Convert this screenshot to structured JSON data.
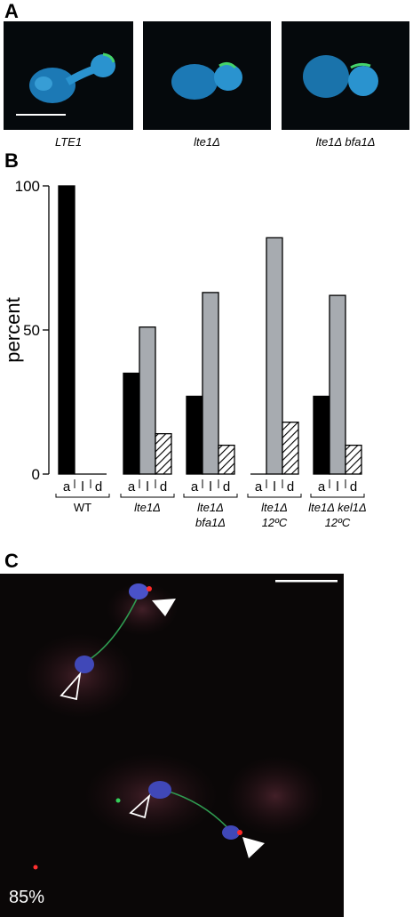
{
  "panel_a": {
    "letter": "A",
    "images": [
      {
        "caption": "LTE1"
      },
      {
        "caption": "lte1Δ"
      },
      {
        "caption": "lte1Δ bfa1Δ"
      }
    ]
  },
  "panel_b": {
    "letter": "B"
  },
  "panel_c": {
    "letter": "C",
    "percent_label": "85%"
  },
  "chart_data": {
    "type": "bar",
    "ylabel": "percent",
    "ylim": [
      0,
      100
    ],
    "yticks": [
      0,
      50,
      100
    ],
    "bar_labels": [
      "a",
      "l",
      "d"
    ],
    "groups": [
      {
        "label_lines": [
          "WT"
        ],
        "italic": false,
        "values": [
          100,
          0,
          0
        ]
      },
      {
        "label_lines": [
          "lte1Δ"
        ],
        "italic": true,
        "values": [
          35,
          51,
          14
        ]
      },
      {
        "label_lines": [
          "lte1Δ",
          "bfa1Δ"
        ],
        "italic": true,
        "values": [
          27,
          63,
          10
        ]
      },
      {
        "label_lines": [
          "lte1Δ",
          "12ºC"
        ],
        "italic": true,
        "values": [
          0,
          82,
          18
        ]
      },
      {
        "label_lines": [
          "lte1Δ kel1Δ",
          "12ºC"
        ],
        "italic": true,
        "values": [
          27,
          62,
          10
        ]
      }
    ],
    "colors": {
      "a": "#000000",
      "l": "#a7abb0",
      "d": "hatched"
    }
  }
}
